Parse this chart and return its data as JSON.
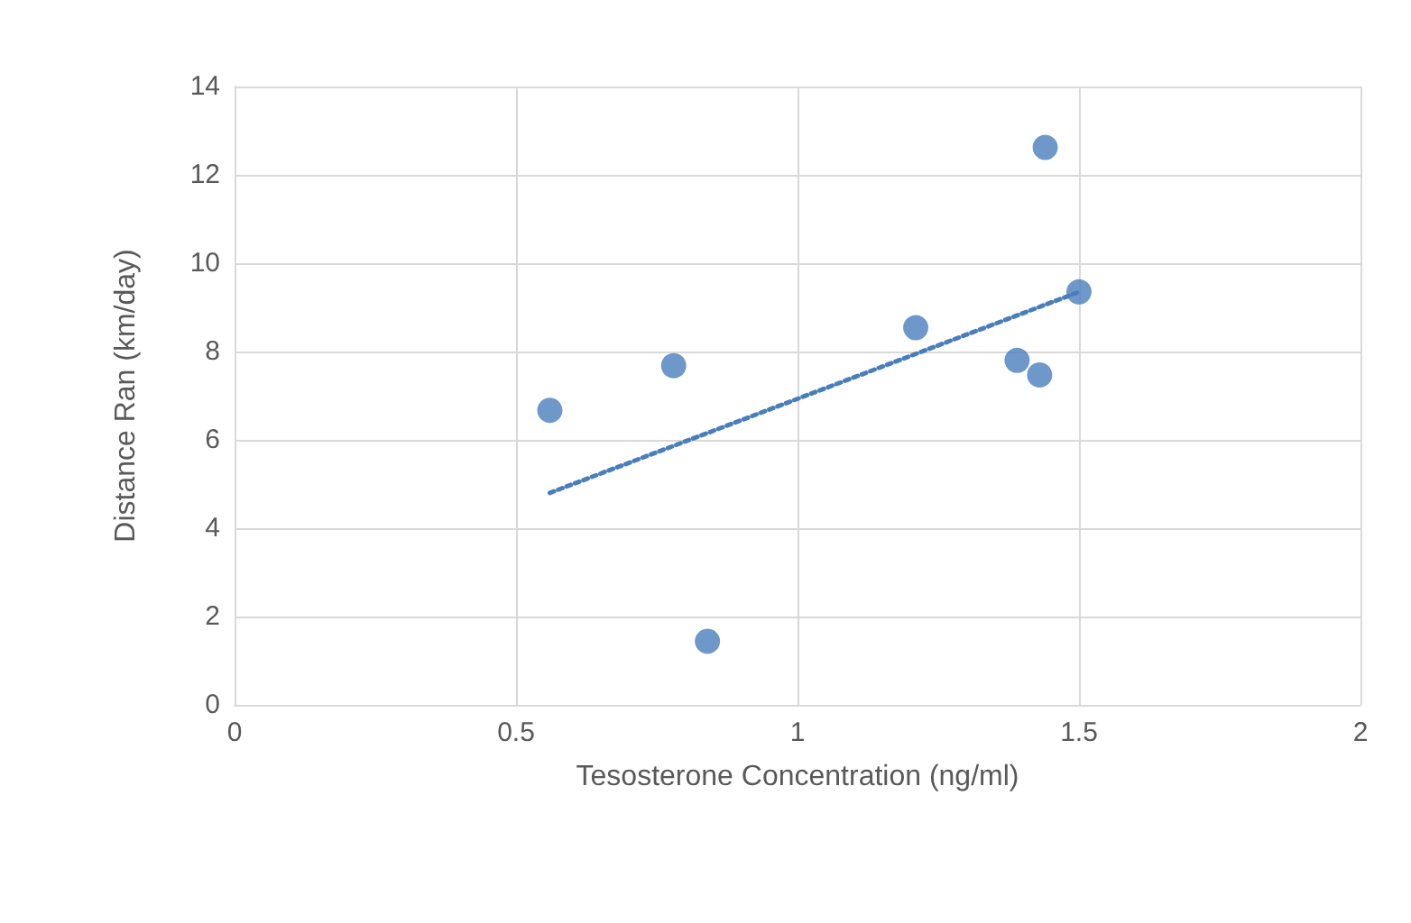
{
  "chart_data": {
    "type": "scatter",
    "xlabel": "Tesosterone Concentration (ng/ml)",
    "ylabel": "Distance Ran (km/day)",
    "xlim": [
      0,
      2
    ],
    "xticks": [
      0,
      0.5,
      1,
      1.5,
      2
    ],
    "ylim": [
      0,
      14
    ],
    "yticks": [
      0,
      2,
      4,
      6,
      8,
      10,
      12,
      14
    ],
    "grid": true,
    "marker": "circle",
    "series": [
      {
        "color": "#4a7ebb",
        "x": [
          0.56,
          0.78,
          0.84,
          1.21,
          1.39,
          1.43,
          1.44,
          1.5
        ],
        "values": [
          6.67,
          7.68,
          1.44,
          8.54,
          7.8,
          7.47,
          12.62,
          9.35
        ]
      },
      {
        "type": "line",
        "color": "#4a7ebb",
        "line_style": "dotted",
        "marker": "none",
        "x": [
          0.56,
          1.5
        ],
        "values": [
          4.8,
          9.35
        ]
      }
    ]
  }
}
